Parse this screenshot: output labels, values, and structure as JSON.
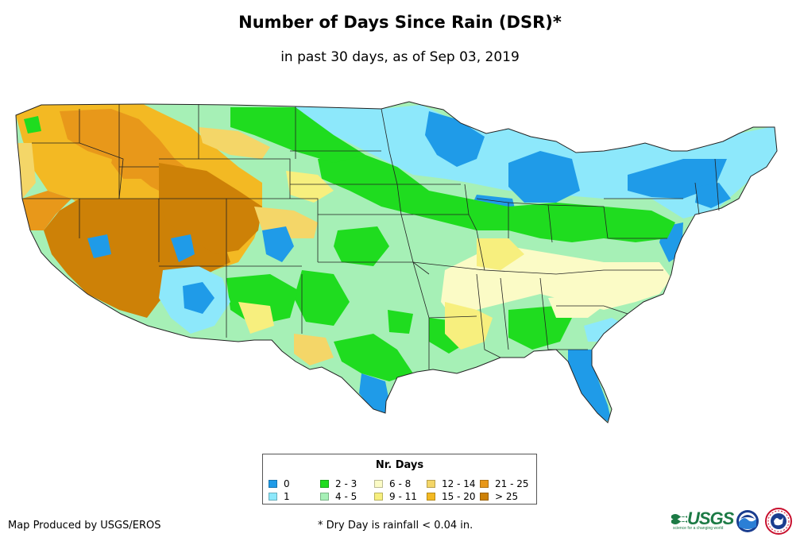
{
  "map": {
    "title": "Number of Days Since Rain (DSR)*",
    "subtitle": "in past 30 days, as of Sep 03, 2019"
  },
  "legend": {
    "title": "Nr. Days",
    "classes": [
      {
        "label": "0",
        "color": "#1f9be8"
      },
      {
        "label": "1",
        "color": "#8de8fb"
      },
      {
        "label": "2 - 3",
        "color": "#1fdc1f"
      },
      {
        "label": "4 - 5",
        "color": "#a6f0b6"
      },
      {
        "label": "6 - 8",
        "color": "#fbfbc6"
      },
      {
        "label": "9 - 11",
        "color": "#f7ef7e"
      },
      {
        "label": "12 - 14",
        "color": "#f4d668"
      },
      {
        "label": "15 - 20",
        "color": "#f3b923"
      },
      {
        "label": "21 - 25",
        "color": "#e8981a"
      },
      {
        "label": "> 25",
        "color": "#cd8107"
      }
    ]
  },
  "footer": {
    "credit": "Map Produced by USGS/EROS",
    "footnote": "* Dry Day is rainfall < 0.04 in."
  },
  "logos": {
    "usgs": "USGS",
    "usgs_tagline": "science for a changing world"
  }
}
